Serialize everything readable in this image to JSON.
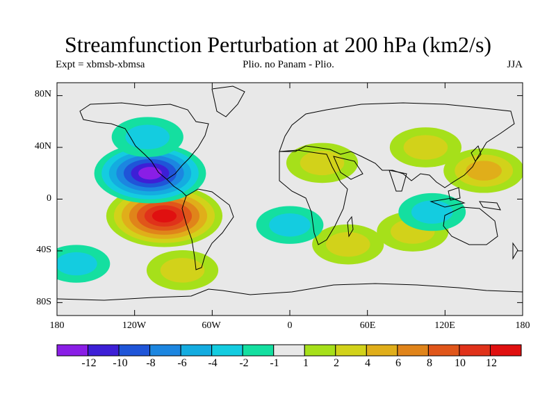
{
  "title": "Streamfunction Perturbation at 200 hPa (km2/s)",
  "subtitle_left": "Expt = xbmsb-xbmsa",
  "subtitle_center": "Plio. no Panam - Plio.",
  "subtitle_right": "JJA",
  "lat_labels": [
    "80N",
    "40N",
    "0",
    "40S",
    "80S"
  ],
  "lon_labels": [
    "180",
    "120W",
    "60W",
    "0",
    "60E",
    "120E",
    "180"
  ],
  "colorbar": {
    "labels": [
      "-12",
      "-10",
      "-8",
      "-6",
      "-4",
      "-2",
      "-1",
      "1",
      "2",
      "4",
      "6",
      "8",
      "10",
      "12"
    ],
    "colors": [
      "#8a1ee6",
      "#3d1fd6",
      "#1f55d8",
      "#1c86e0",
      "#14ace0",
      "#14cce0",
      "#14dfa0",
      "#e8e8e8",
      "#a6e01a",
      "#d2d21a",
      "#e0ae1a",
      "#e0841a",
      "#e0561a",
      "#e0321a",
      "#e01010"
    ]
  },
  "map": {
    "projection": "cylindrical-equidistant",
    "lon_range": [
      -180,
      180
    ],
    "lat_range": [
      -90,
      90
    ],
    "background_color": "#e8e8e8",
    "anomalies": [
      {
        "lon": -97,
        "lat": -13,
        "value": 13
      },
      {
        "lon": -108,
        "lat": 20,
        "value": -12
      },
      {
        "lon": 25,
        "lat": 28,
        "value": 3
      },
      {
        "lon": 105,
        "lat": 40,
        "value": 3
      },
      {
        "lon": 150,
        "lat": 22,
        "value": 5
      },
      {
        "lon": -83,
        "lat": -55,
        "value": 3
      },
      {
        "lon": 45,
        "lat": -35,
        "value": 3
      },
      {
        "lon": 95,
        "lat": -25,
        "value": 3
      },
      {
        "lon": -110,
        "lat": 48,
        "value": -3
      },
      {
        "lon": 0,
        "lat": -20,
        "value": -2
      },
      {
        "lon": 110,
        "lat": -10,
        "value": -2
      },
      {
        "lon": -165,
        "lat": -50,
        "value": -2
      }
    ]
  }
}
